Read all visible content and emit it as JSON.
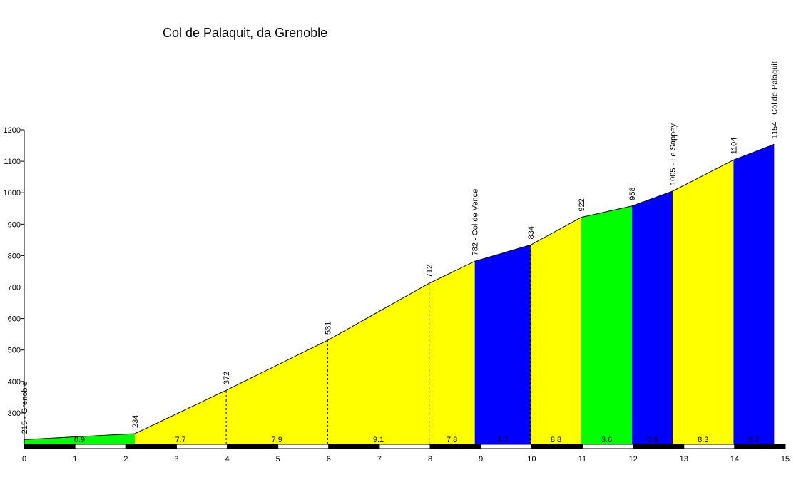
{
  "chart_data": {
    "type": "area",
    "title": "Col de Palaquit, da Grenoble",
    "xlabel": "",
    "ylabel": "",
    "xlim": [
      0,
      15
    ],
    "ylim": [
      200,
      1200
    ],
    "x_ticks": [
      0,
      1,
      2,
      3,
      4,
      5,
      6,
      7,
      8,
      9,
      10,
      11,
      12,
      13,
      14,
      15
    ],
    "y_ticks": [
      300,
      400,
      500,
      600,
      700,
      800,
      900,
      1000,
      1100,
      1200
    ],
    "grid": false,
    "legend": "none",
    "profile_points": [
      {
        "x": 0.0,
        "y": 215
      },
      {
        "x": 2.18,
        "y": 234
      },
      {
        "x": 3.98,
        "y": 372
      },
      {
        "x": 5.98,
        "y": 531
      },
      {
        "x": 7.98,
        "y": 712
      },
      {
        "x": 8.88,
        "y": 782
      },
      {
        "x": 9.98,
        "y": 834
      },
      {
        "x": 10.98,
        "y": 922
      },
      {
        "x": 11.98,
        "y": 958
      },
      {
        "x": 12.78,
        "y": 1005
      },
      {
        "x": 13.98,
        "y": 1104
      },
      {
        "x": 14.78,
        "y": 1154
      }
    ],
    "segments": [
      {
        "x0": 0.0,
        "x1": 2.18,
        "gradient": "0.9",
        "color": "#00ff00"
      },
      {
        "x0": 2.18,
        "x1": 3.98,
        "gradient": "7.7",
        "color": "#ffff00"
      },
      {
        "x0": 3.98,
        "x1": 5.98,
        "gradient": "7.9",
        "color": "#ffff00"
      },
      {
        "x0": 5.98,
        "x1": 7.98,
        "gradient": "9.1",
        "color": "#ffff00"
      },
      {
        "x0": 7.98,
        "x1": 8.88,
        "gradient": "7.8",
        "color": "#ffff00"
      },
      {
        "x0": 8.88,
        "x1": 9.98,
        "gradient": "4.7",
        "color": "#0000ff"
      },
      {
        "x0": 9.98,
        "x1": 10.98,
        "gradient": "8.8",
        "color": "#ffff00"
      },
      {
        "x0": 10.98,
        "x1": 11.98,
        "gradient": "3.6",
        "color": "#00ff00"
      },
      {
        "x0": 11.98,
        "x1": 12.78,
        "gradient": "5.9",
        "color": "#0000ff"
      },
      {
        "x0": 12.78,
        "x1": 13.98,
        "gradient": "8.3",
        "color": "#ffff00"
      },
      {
        "x0": 13.98,
        "x1": 14.78,
        "gradient": "6.2",
        "color": "#0000ff"
      }
    ],
    "elevation_labels": [
      {
        "x": 0.0,
        "text": "215 - Grenoble"
      },
      {
        "x": 2.18,
        "text": "234"
      },
      {
        "x": 3.98,
        "text": "372"
      },
      {
        "x": 5.98,
        "text": "531"
      },
      {
        "x": 7.98,
        "text": "712"
      },
      {
        "x": 8.88,
        "text": "782 - Col de Vence"
      },
      {
        "x": 9.98,
        "text": "834"
      },
      {
        "x": 10.98,
        "text": "922"
      },
      {
        "x": 11.98,
        "text": "958"
      },
      {
        "x": 12.78,
        "text": "1005 - Le Sappey"
      },
      {
        "x": 13.98,
        "text": "1104"
      },
      {
        "x": 14.78,
        "text": "1154 - Col de Palaquit"
      }
    ],
    "dashed_markers": [
      3.98,
      5.98,
      7.98,
      9.98
    ]
  }
}
